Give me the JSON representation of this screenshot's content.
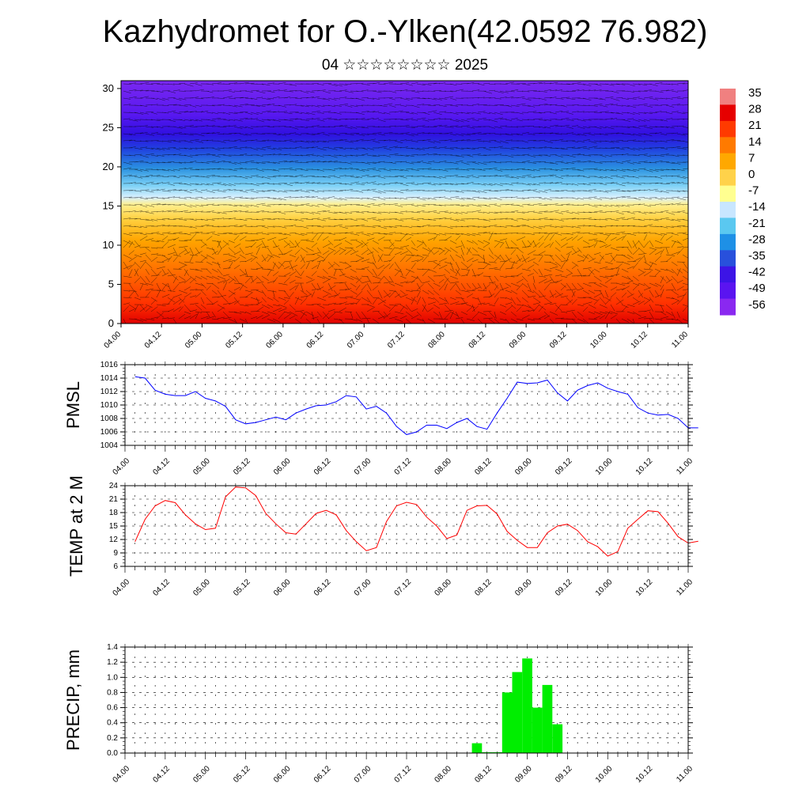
{
  "title": "Kazhydromet for O.-Ylken(42.0592 76.982)",
  "subtitle": "04 ☆☆☆☆☆☆☆☆ 2025",
  "time_ticks": [
    "04.00",
    "04.12",
    "05.00",
    "05.12",
    "06.00",
    "06.12",
    "07.00",
    "07.12",
    "08.00",
    "08.12",
    "09.00",
    "09.12",
    "10.00",
    "10.12",
    "11.00"
  ],
  "colors": {
    "pmsl_line": "#0000ff",
    "temp_line": "#ff0000",
    "precip_bar": "#00ee00",
    "grid": "#000000"
  },
  "chart_data": [
    {
      "type": "heatmap",
      "description_key": "vertical-temperature-profile",
      "ylim": [
        0,
        31
      ],
      "y_ticks": [
        0,
        5,
        10,
        15,
        20,
        25,
        30
      ],
      "x": [
        "04.00",
        "04.12",
        "05.00",
        "05.12",
        "06.00",
        "06.12",
        "07.00",
        "07.12",
        "08.00",
        "08.12",
        "09.00",
        "09.12",
        "10.00",
        "10.12",
        "11.00"
      ],
      "colorbar_levels": [
        "35",
        "28",
        "21",
        "14",
        "7",
        "0",
        "-7",
        "-14",
        "-21",
        "-28",
        "-35",
        "-42",
        "-49",
        "-56"
      ],
      "colorbar_colors": [
        "#f08080",
        "#e60000",
        "#ff3a00",
        "#ff7a00",
        "#ffa800",
        "#ffd24a",
        "#ffff90",
        "#c8e6ff",
        "#5ac8f0",
        "#1e90e6",
        "#2850dc",
        "#3c14e6",
        "#5a14f0",
        "#8a28f0"
      ],
      "wind_barbs": true
    },
    {
      "type": "line",
      "ylabel": "PMSL",
      "ylim": [
        1004,
        1016
      ],
      "y_ticks": [
        1004,
        1006,
        1008,
        1010,
        1012,
        1014,
        1016
      ],
      "x_start_index": 0.25,
      "step": 0.25,
      "values": [
        1014.2,
        1014.0,
        1012.2,
        1011.6,
        1011.4,
        1011.4,
        1012.0,
        1011.0,
        1010.6,
        1009.8,
        1007.8,
        1007.2,
        1007.4,
        1007.8,
        1008.2,
        1007.8,
        1008.8,
        1009.4,
        1009.9,
        1010.0,
        1010.5,
        1011.4,
        1011.2,
        1009.4,
        1009.8,
        1008.8,
        1006.8,
        1005.6,
        1006.0,
        1007.0,
        1007.0,
        1006.5,
        1007.4,
        1008.0,
        1006.8,
        1006.4,
        1008.8,
        1011.0,
        1013.4,
        1013.2,
        1013.3,
        1013.7,
        1011.8,
        1010.6,
        1012.2,
        1012.9,
        1013.3,
        1012.5,
        1012.0,
        1011.6,
        1009.6,
        1008.8,
        1008.5,
        1008.6,
        1008.0,
        1006.6,
        1006.6
      ],
      "grid": true
    },
    {
      "type": "line",
      "ylabel": "TEMP at 2 M",
      "ylim": [
        6,
        24
      ],
      "y_ticks": [
        6,
        9,
        12,
        15,
        18,
        21,
        24
      ],
      "x_start_index": 0.25,
      "step": 0.25,
      "values": [
        11.5,
        16.5,
        19.5,
        20.7,
        20.2,
        17.5,
        15.5,
        14.2,
        14.5,
        21.5,
        23.7,
        23.5,
        21.8,
        17.8,
        15.5,
        13.5,
        13.2,
        15.5,
        17.8,
        18.5,
        17.5,
        14.0,
        11.5,
        9.5,
        10.2,
        16.0,
        19.5,
        20.3,
        19.8,
        17.0,
        15.0,
        12.2,
        13.0,
        18.5,
        19.5,
        19.6,
        17.7,
        13.8,
        11.8,
        10.2,
        10.2,
        13.5,
        15.0,
        15.4,
        14.0,
        11.5,
        10.4,
        8.3,
        9.3,
        14.5,
        16.5,
        18.4,
        18.2,
        15.6,
        12.6,
        11.2,
        11.6
      ],
      "grid": true
    },
    {
      "type": "bar",
      "ylabel": "PRECIP, mm",
      "ylim": [
        0,
        1.4
      ],
      "y_ticks": [
        "0.0",
        "0.2",
        "0.4",
        "0.6",
        "0.8",
        "1.0",
        "1.2",
        "1.4"
      ],
      "step": 0.25,
      "bars": [
        {
          "x_index": 8.75,
          "value": 0.13
        },
        {
          "x_index": 9.0,
          "value": 0.01
        },
        {
          "x_index": 9.25,
          "value": 0.01
        },
        {
          "x_index": 9.5,
          "value": 0.8
        },
        {
          "x_index": 9.75,
          "value": 1.07
        },
        {
          "x_index": 10.0,
          "value": 1.25
        },
        {
          "x_index": 10.25,
          "value": 0.6
        },
        {
          "x_index": 10.5,
          "value": 0.9
        },
        {
          "x_index": 10.75,
          "value": 0.38
        }
      ],
      "grid": true
    }
  ]
}
